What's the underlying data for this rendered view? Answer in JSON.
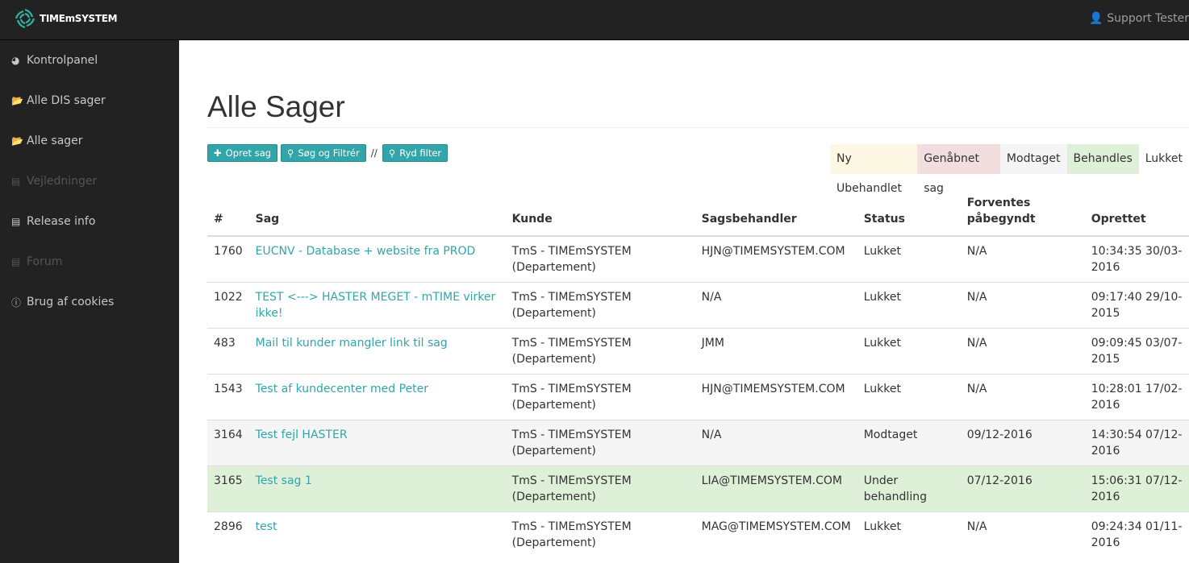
{
  "header": {
    "logo_text": "TIMEmSYSTEM",
    "user": "Support Tester"
  },
  "sidebar": {
    "items": [
      {
        "label": "Kontrolpanel",
        "icon": "dashboard-icon",
        "enabled": true
      },
      {
        "label": "Alle DIS sager",
        "icon": "folder-open-icon",
        "enabled": true
      },
      {
        "label": "Alle sager",
        "icon": "folder-open-icon",
        "enabled": true
      },
      {
        "label": "Vejledninger",
        "icon": "book-icon",
        "enabled": false
      },
      {
        "label": "Release info",
        "icon": "book-icon",
        "enabled": true
      },
      {
        "label": "Forum",
        "icon": "book-icon",
        "enabled": false
      },
      {
        "label": "Brug af cookies",
        "icon": "info-icon",
        "enabled": true
      }
    ]
  },
  "page": {
    "title": "Alle Sager"
  },
  "toolbar": {
    "create": "Opret sag",
    "search": "Søg og Filtrér",
    "separator": "//",
    "clear": "Ryd filter"
  },
  "legend": [
    {
      "label": "Ny Ubehandlet",
      "color": "#fcf8e3"
    },
    {
      "label": "Genåbnet sag",
      "color": "#f2dede"
    },
    {
      "label": "Modtaget",
      "color": "#f5f5f5"
    },
    {
      "label": "Behandles",
      "color": "#dff0d8"
    },
    {
      "label": "Lukket",
      "color": "#ffffff"
    }
  ],
  "table": {
    "headers": [
      "#",
      "Sag",
      "Kunde",
      "Sagsbehandler",
      "Status",
      "Forventes påbegyndt",
      "Oprettet"
    ],
    "rows": [
      {
        "id": "1760",
        "sag": "EUCNV - Database + website fra PROD",
        "kunde": "TmS - TIMEmSYSTEM (Departement)",
        "behandler": "HJN@TIMEMSYSTEM.COM",
        "status": "Lukket",
        "forventes": "N/A",
        "oprettet": "10:34:35 30/03-2016",
        "bg": "#ffffff"
      },
      {
        "id": "1022",
        "sag": "TEST <---> HASTER MEGET - mTIME virker ikke!",
        "kunde": "TmS - TIMEmSYSTEM (Departement)",
        "behandler": "N/A",
        "status": "Lukket",
        "forventes": "N/A",
        "oprettet": "09:17:40 29/10-2015",
        "bg": "#ffffff"
      },
      {
        "id": "483",
        "sag": "Mail til kunder mangler link til sag",
        "kunde": "TmS - TIMEmSYSTEM (Departement)",
        "behandler": "JMM",
        "status": "Lukket",
        "forventes": "N/A",
        "oprettet": "09:09:45 03/07-2015",
        "bg": "#ffffff"
      },
      {
        "id": "1543",
        "sag": "Test af kundecenter med Peter",
        "kunde": "TmS - TIMEmSYSTEM (Departement)",
        "behandler": "HJN@TIMEMSYSTEM.COM",
        "status": "Lukket",
        "forventes": "N/A",
        "oprettet": "10:28:01 17/02-2016",
        "bg": "#ffffff"
      },
      {
        "id": "3164",
        "sag": "Test fejl HASTER",
        "kunde": "TmS - TIMEmSYSTEM (Departement)",
        "behandler": "N/A",
        "status": "Modtaget",
        "forventes": "09/12-2016",
        "oprettet": "14:30:54 07/12-2016",
        "bg": "#f5f5f5"
      },
      {
        "id": "3165",
        "sag": "Test sag 1",
        "kunde": "TmS - TIMEmSYSTEM (Departement)",
        "behandler": "LIA@TIMEMSYSTEM.COM",
        "status": "Under behandling",
        "forventes": "07/12-2016",
        "oprettet": "15:06:31 07/12-2016",
        "bg": "#dff0d8"
      },
      {
        "id": "2896",
        "sag": "test",
        "kunde": "TmS - TIMEmSYSTEM (Departement)",
        "behandler": "MAG@TIMEMSYSTEM.COM",
        "status": "Lukket",
        "forventes": "N/A",
        "oprettet": "09:24:34 01/11-2016",
        "bg": "#ffffff"
      }
    ]
  }
}
